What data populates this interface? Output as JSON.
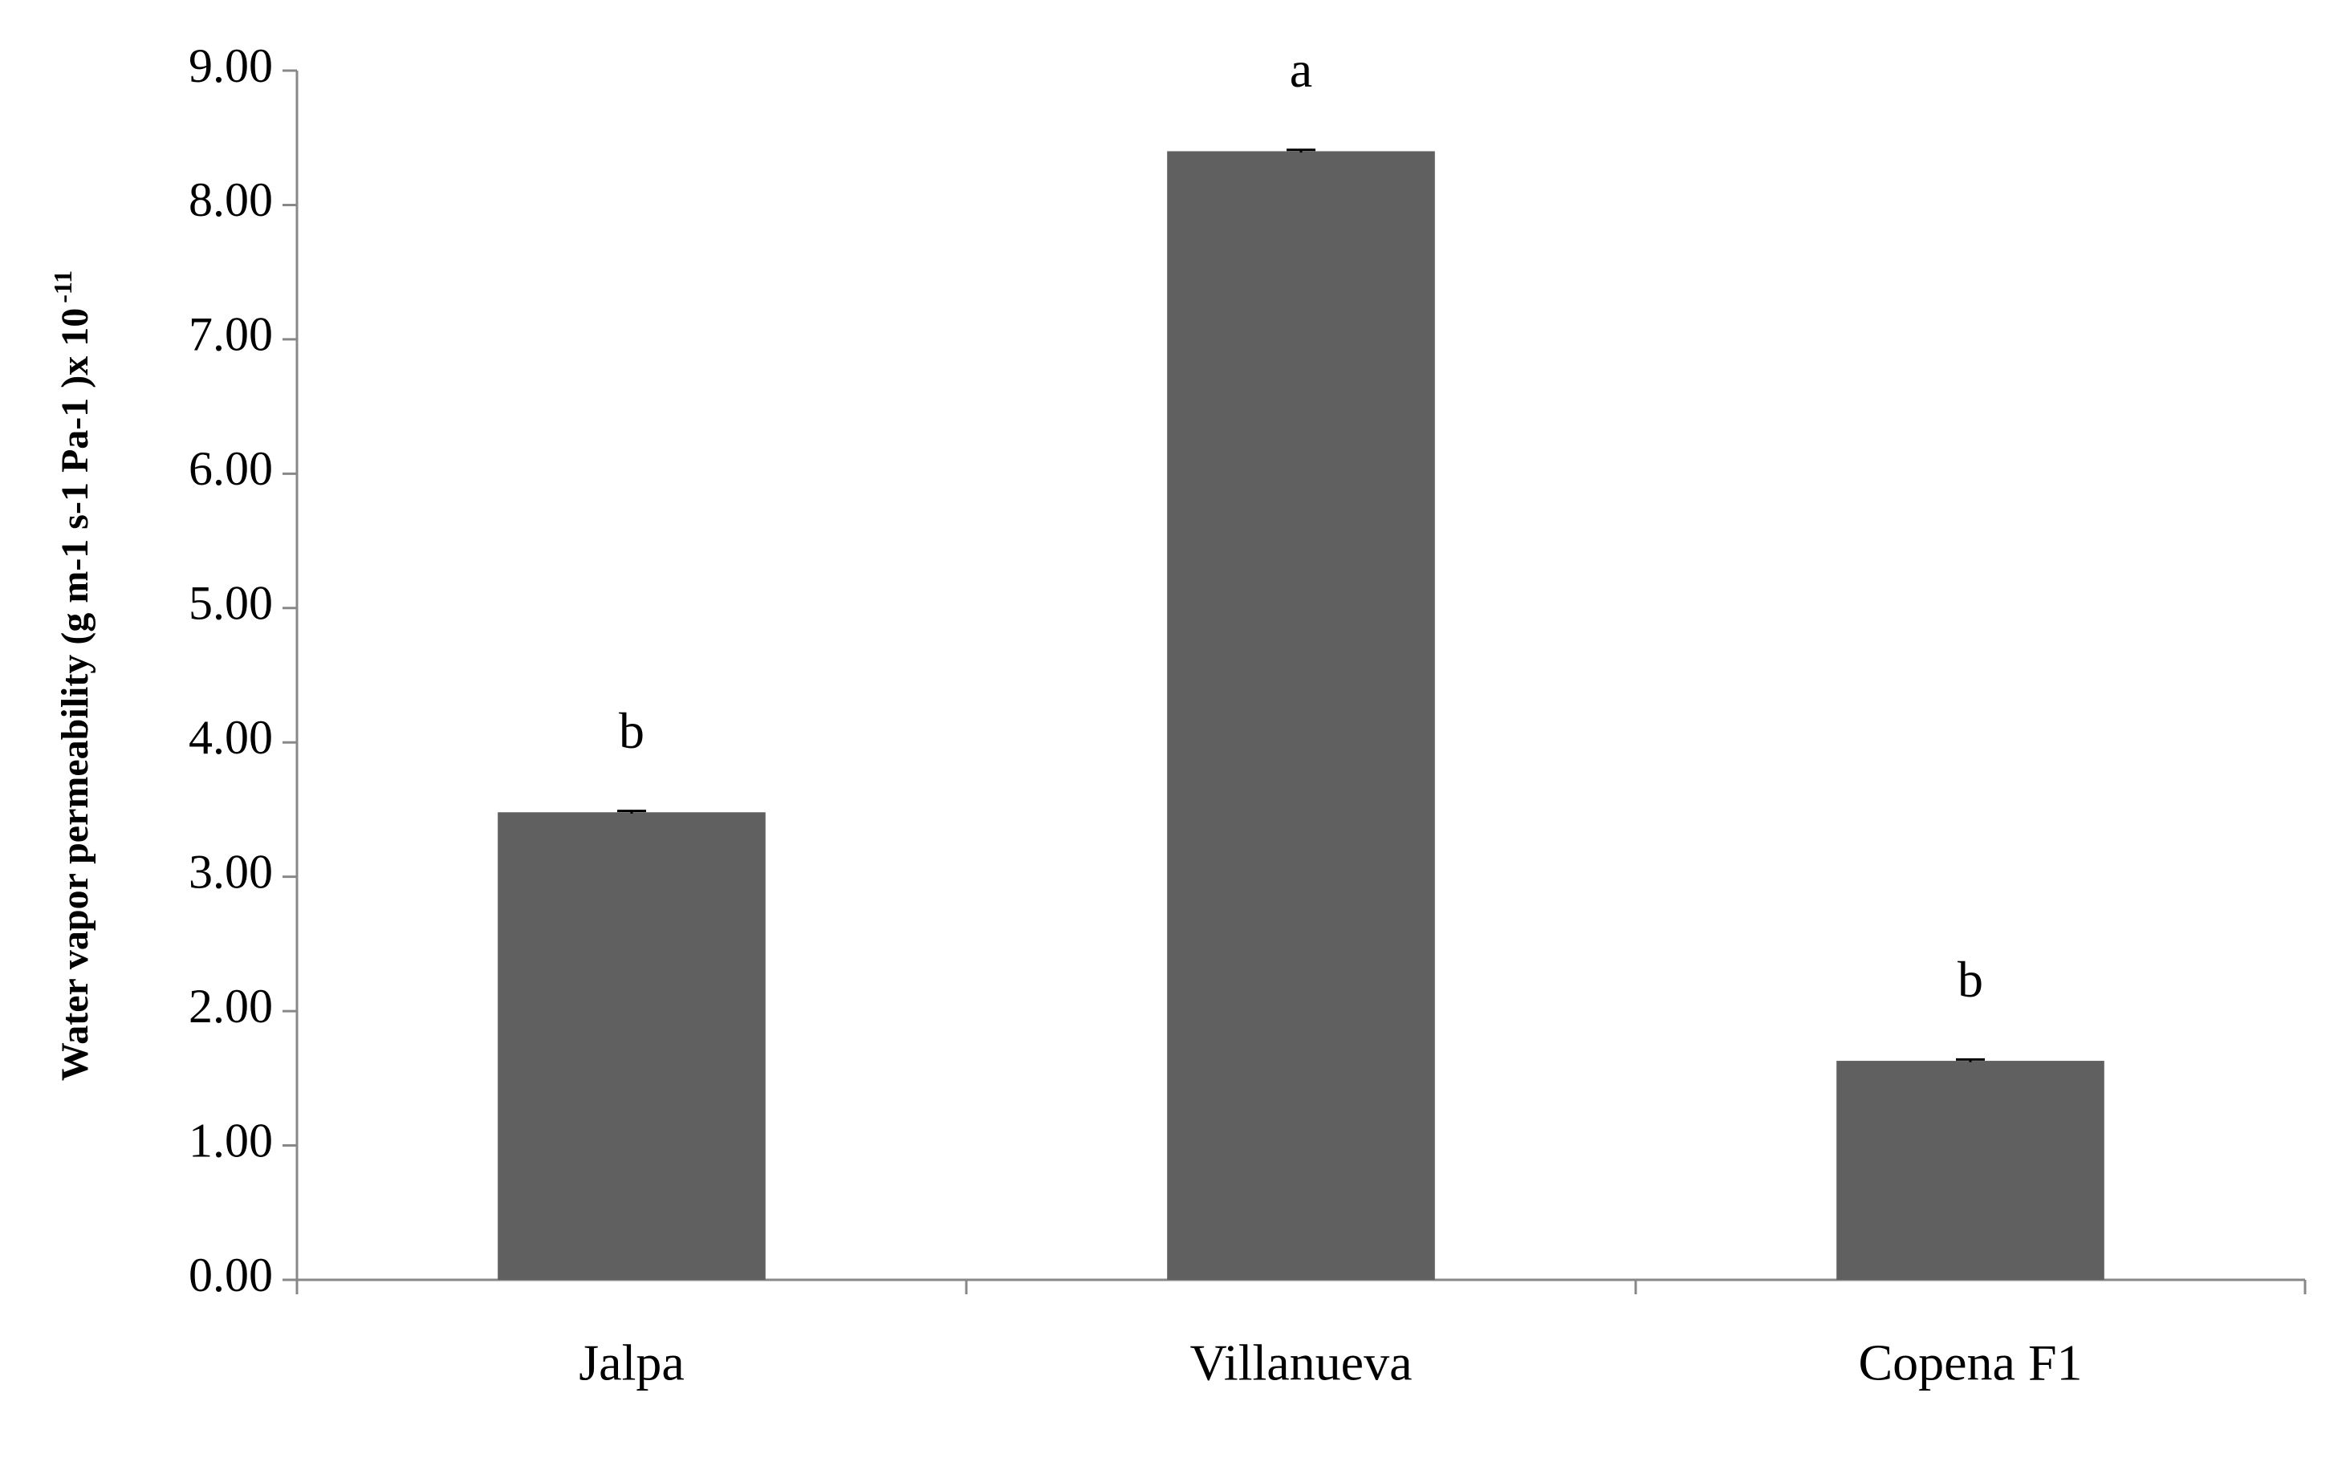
{
  "chart_data": {
    "type": "bar",
    "ylabel": "Water vapor permeability (g m-1 s-1 Pa-1 )x 10",
    "ylabel_superscript": "-11",
    "categories": [
      "Jalpa",
      "Villanueva",
      "Copena F1"
    ],
    "values": [
      3.48,
      8.4,
      1.63
    ],
    "errors": [
      0.01,
      0.01,
      0.01
    ],
    "annotations": [
      "b",
      "a",
      "b"
    ],
    "color": "#606060",
    "ylim": [
      0,
      9
    ],
    "yticks": [
      {
        "value": 0,
        "label": "0.00"
      },
      {
        "value": 1,
        "label": "1.00"
      },
      {
        "value": 2,
        "label": "2.00"
      },
      {
        "value": 3,
        "label": "3.00"
      },
      {
        "value": 4,
        "label": "4.00"
      },
      {
        "value": 5,
        "label": "5.00"
      },
      {
        "value": 6,
        "label": "6.00"
      },
      {
        "value": 7,
        "label": "7.00"
      },
      {
        "value": 8,
        "label": "8.00"
      },
      {
        "value": 9,
        "label": "9.00"
      }
    ],
    "grid": false
  }
}
